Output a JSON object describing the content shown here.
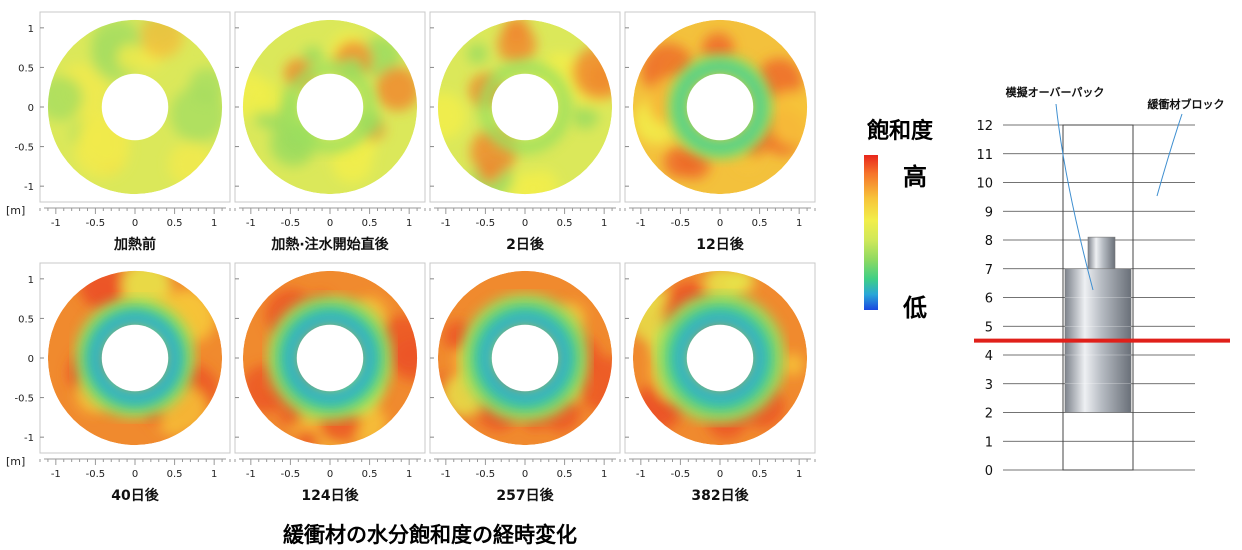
{
  "figure_title": "緩衝材の水分飽和度の経時変化",
  "axis_unit": "[m]",
  "legend": {
    "title": "飽和度",
    "high_label": "高",
    "low_label": "低",
    "colors": [
      "#e8261c",
      "#f6742a",
      "#f7c43a",
      "#f2ee4a",
      "#cfe85a",
      "#8cd962",
      "#3fcf86",
      "#2aa6d8",
      "#1a48e0"
    ]
  },
  "panels": [
    {
      "label": "加熱前",
      "row": 0,
      "col": 0,
      "level": 0.0,
      "seed": 1
    },
    {
      "label": "加熱·注水開始直後",
      "row": 0,
      "col": 1,
      "level": 0.15,
      "seed": 2
    },
    {
      "label": "2日後",
      "row": 0,
      "col": 2,
      "level": 0.2,
      "seed": 3
    },
    {
      "label": "12日後",
      "row": 0,
      "col": 3,
      "level": 0.45,
      "seed": 4
    },
    {
      "label": "40日後",
      "row": 1,
      "col": 0,
      "level": 0.75,
      "seed": 5
    },
    {
      "label": "124日後",
      "row": 1,
      "col": 1,
      "level": 0.85,
      "seed": 6
    },
    {
      "label": "257日後",
      "row": 1,
      "col": 2,
      "level": 0.9,
      "seed": 7
    },
    {
      "label": "382日後",
      "row": 1,
      "col": 3,
      "level": 0.95,
      "seed": 8
    }
  ],
  "chart_data": [
    {
      "type": "heatmap",
      "title": "緩衝材の水分飽和度の経時変化",
      "xlabel": "[m]",
      "ylabel": "",
      "xlim": [
        -1.2,
        1.2
      ],
      "ylim": [
        -1.2,
        1.2
      ],
      "x_ticks": [
        "-1",
        "-0.5",
        "0",
        "0.5",
        "1"
      ],
      "y_ticks": [
        "1",
        "0.5",
        "0",
        "-0.5",
        "-1"
      ],
      "colorbar": {
        "title": "飽和度",
        "max_label": "高",
        "min_label": "低"
      }
    },
    {
      "type": "diagram",
      "y_ticks": [
        "12",
        "11",
        "10",
        "9",
        "8",
        "7",
        "6",
        "5",
        "4",
        "3",
        "2",
        "1",
        "0"
      ],
      "ylim": [
        0,
        12
      ],
      "annotations": [
        "模擬オーバーパック",
        "緩衝材ブロック"
      ],
      "overpack_range": [
        2,
        7
      ],
      "overpack_top_range": [
        7,
        8.1
      ],
      "red_line_y": 4.5
    }
  ]
}
